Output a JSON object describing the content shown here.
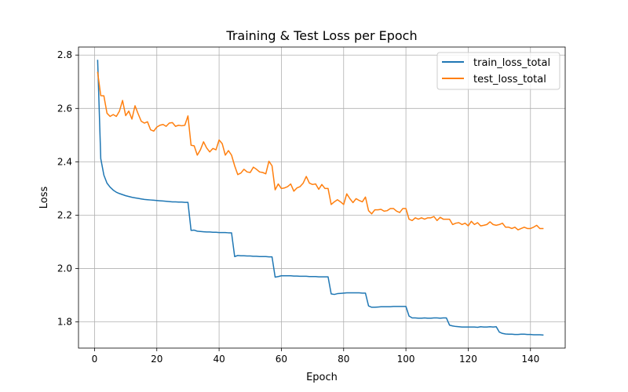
{
  "chart_data": {
    "type": "line",
    "title": "Training & Test Loss per Epoch",
    "xlabel": "Epoch",
    "ylabel": "Loss",
    "xlim": [
      -5.15,
      151.15
    ],
    "ylim": [
      1.702,
      2.83
    ],
    "xticks": [
      0,
      20,
      40,
      60,
      80,
      100,
      120,
      140
    ],
    "xtick_labels": [
      "0",
      "20",
      "40",
      "60",
      "80",
      "100",
      "120",
      "140"
    ],
    "yticks": [
      1.8,
      2.0,
      2.2,
      2.4,
      2.6,
      2.8
    ],
    "ytick_labels": [
      "1.8",
      "2.0",
      "2.2",
      "2.4",
      "2.6",
      "2.8"
    ],
    "grid": true,
    "legend_position": "top-right",
    "series": [
      {
        "name": "train_loss_total",
        "color": "#1f77b4",
        "x_start": 1,
        "values": [
          2.78,
          2.412,
          2.35,
          2.32,
          2.305,
          2.294,
          2.286,
          2.281,
          2.277,
          2.273,
          2.27,
          2.267,
          2.265,
          2.263,
          2.261,
          2.259,
          2.258,
          2.257,
          2.256,
          2.255,
          2.254,
          2.253,
          2.252,
          2.251,
          2.25,
          2.25,
          2.249,
          2.249,
          2.248,
          2.248,
          2.143,
          2.144,
          2.14,
          2.139,
          2.138,
          2.137,
          2.137,
          2.136,
          2.136,
          2.135,
          2.135,
          2.135,
          2.134,
          2.134,
          2.045,
          2.049,
          2.048,
          2.048,
          2.047,
          2.047,
          2.046,
          2.046,
          2.045,
          2.045,
          2.045,
          2.044,
          2.044,
          1.968,
          1.97,
          1.973,
          1.973,
          1.973,
          1.973,
          1.972,
          1.972,
          1.971,
          1.971,
          1.971,
          1.97,
          1.97,
          1.97,
          1.969,
          1.969,
          1.969,
          1.969,
          1.905,
          1.903,
          1.906,
          1.907,
          1.908,
          1.909,
          1.909,
          1.909,
          1.909,
          1.909,
          1.908,
          1.908,
          1.86,
          1.855,
          1.855,
          1.856,
          1.857,
          1.857,
          1.857,
          1.857,
          1.858,
          1.858,
          1.858,
          1.858,
          1.858,
          1.822,
          1.815,
          1.815,
          1.814,
          1.814,
          1.815,
          1.814,
          1.814,
          1.815,
          1.815,
          1.814,
          1.815,
          1.815,
          1.788,
          1.785,
          1.783,
          1.782,
          1.781,
          1.781,
          1.781,
          1.781,
          1.781,
          1.78,
          1.782,
          1.781,
          1.781,
          1.782,
          1.781,
          1.782,
          1.762,
          1.757,
          1.755,
          1.754,
          1.754,
          1.753,
          1.753,
          1.754,
          1.754,
          1.753,
          1.753,
          1.752,
          1.752,
          1.752,
          1.751
        ]
      },
      {
        "name": "test_loss_total",
        "color": "#ff7f0e",
        "x_start": 1,
        "values": [
          2.735,
          2.648,
          2.647,
          2.582,
          2.57,
          2.577,
          2.57,
          2.59,
          2.63,
          2.573,
          2.59,
          2.56,
          2.61,
          2.58,
          2.552,
          2.545,
          2.55,
          2.52,
          2.515,
          2.53,
          2.537,
          2.54,
          2.533,
          2.545,
          2.547,
          2.533,
          2.537,
          2.535,
          2.537,
          2.572,
          2.462,
          2.46,
          2.425,
          2.445,
          2.475,
          2.452,
          2.437,
          2.45,
          2.445,
          2.482,
          2.468,
          2.425,
          2.442,
          2.425,
          2.385,
          2.352,
          2.358,
          2.372,
          2.362,
          2.36,
          2.38,
          2.372,
          2.362,
          2.36,
          2.355,
          2.402,
          2.385,
          2.295,
          2.317,
          2.3,
          2.302,
          2.307,
          2.317,
          2.29,
          2.302,
          2.307,
          2.32,
          2.345,
          2.32,
          2.315,
          2.317,
          2.297,
          2.315,
          2.3,
          2.3,
          2.24,
          2.25,
          2.258,
          2.25,
          2.24,
          2.28,
          2.262,
          2.247,
          2.262,
          2.255,
          2.25,
          2.268,
          2.217,
          2.205,
          2.22,
          2.22,
          2.222,
          2.215,
          2.217,
          2.225,
          2.225,
          2.215,
          2.21,
          2.225,
          2.225,
          2.185,
          2.18,
          2.19,
          2.185,
          2.19,
          2.185,
          2.19,
          2.19,
          2.195,
          2.18,
          2.192,
          2.185,
          2.185,
          2.185,
          2.165,
          2.17,
          2.172,
          2.165,
          2.17,
          2.16,
          2.177,
          2.165,
          2.172,
          2.16,
          2.162,
          2.165,
          2.175,
          2.165,
          2.162,
          2.165,
          2.17,
          2.155,
          2.155,
          2.15,
          2.155,
          2.145,
          2.15,
          2.155,
          2.15,
          2.15,
          2.155,
          2.162,
          2.15,
          2.15
        ]
      }
    ]
  }
}
